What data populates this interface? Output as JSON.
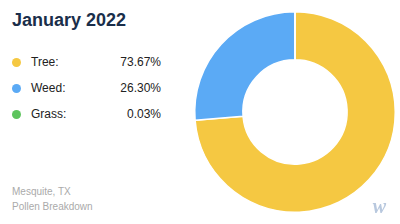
{
  "chart_data": {
    "type": "doughnut",
    "title": "January 2022",
    "subtitle": "Mesquite, TX\nPollen Breakdown",
    "categories": [
      "Tree:",
      "Weed:",
      "Grass:"
    ],
    "values": [
      73.67,
      26.3,
      0.03
    ],
    "value_labels": [
      "73.67%",
      "26.30%",
      "  0.03%"
    ],
    "colors": [
      "#f5c842",
      "#5baaf5",
      "#5ec45e"
    ],
    "annotations": [
      "w"
    ]
  }
}
